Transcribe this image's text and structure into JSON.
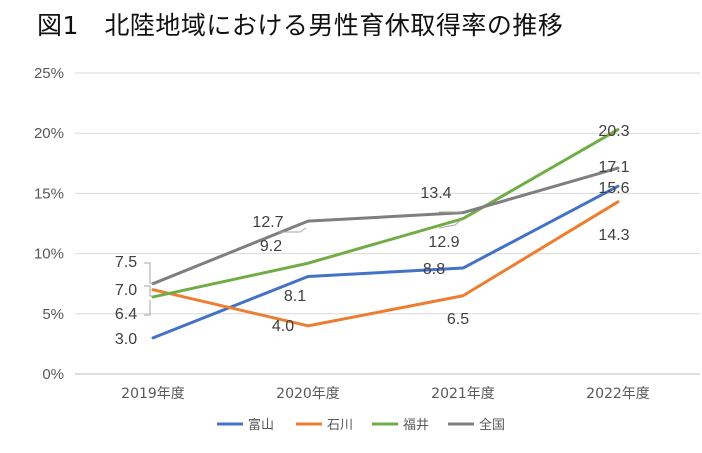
{
  "chart_data": {
    "type": "line",
    "title": "図1　北陸地域における男性育休取得率の推移",
    "categories": [
      "2019年度",
      "2020年度",
      "2021年度",
      "2022年度"
    ],
    "y_ticks": [
      "0%",
      "5%",
      "10%",
      "15%",
      "20%",
      "25%"
    ],
    "ylim": [
      0,
      25
    ],
    "grid": true,
    "legend_position": "bottom",
    "series": [
      {
        "name": "富山",
        "color": "#4472C4",
        "values": [
          3.0,
          8.1,
          8.8,
          15.6
        ],
        "labels": [
          "3.0",
          "8.1",
          "8.8",
          "15.6"
        ]
      },
      {
        "name": "石川",
        "color": "#ED7D31",
        "values": [
          7.0,
          4.0,
          6.5,
          14.3
        ],
        "labels": [
          "7.0",
          "4.0",
          "6.5",
          "14.3"
        ]
      },
      {
        "name": "福井",
        "color": "#70AD47",
        "values": [
          6.4,
          9.2,
          12.9,
          20.3
        ],
        "labels": [
          "6.4",
          "9.2",
          "12.9",
          "20.3"
        ]
      },
      {
        "name": "全国",
        "color": "#7F7F7F",
        "values": [
          7.5,
          12.7,
          13.4,
          17.1
        ],
        "labels": [
          "7.5",
          "12.7",
          "13.4",
          "17.1"
        ]
      }
    ]
  }
}
